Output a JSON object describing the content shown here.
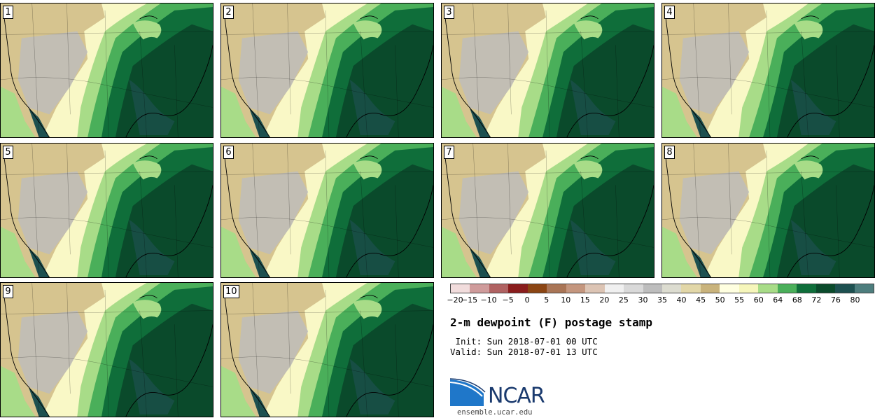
{
  "figure": {
    "title": "2-m dewpoint (F) postage stamp",
    "init_line": " Init: Sun 2018-07-01 00 UTC",
    "valid_line": "Valid: Sun 2018-07-01 13 UTC",
    "site_url": "ensemble.ucar.edu",
    "logo_text": "NCAR"
  },
  "members": [
    "1",
    "2",
    "3",
    "4",
    "5",
    "6",
    "7",
    "8",
    "9",
    "10"
  ],
  "colorbar": {
    "ticks": [
      "−20",
      "−15",
      "−10",
      "−5",
      "0",
      "5",
      "10",
      "15",
      "20",
      "25",
      "30",
      "35",
      "40",
      "45",
      "50",
      "55",
      "60",
      "64",
      "68",
      "72",
      "76",
      "80"
    ],
    "colors": [
      "#f1dcdc",
      "#cf9b9b",
      "#b06262",
      "#8a1d1d",
      "#8b4513",
      "#a97556",
      "#c4967e",
      "#dcc4b4",
      "#f0f0f0",
      "#d9d9d9",
      "#bdbdbd",
      "#dcdcd0",
      "#e2d7a8",
      "#c9b37c",
      "#ffffe0",
      "#f6f6bb",
      "#a8dc88",
      "#4aaf5a",
      "#0f6e3a",
      "#0a4a2b",
      "#1d5050",
      "#4d7d7d"
    ]
  },
  "colors": {
    "humid_dark": "#0a4a2b",
    "humid_mid": "#0f6e3a",
    "humid_light": "#4aaf5a",
    "moist": "#a8dc88",
    "dry_light": "#f9f8c6",
    "dry_tan": "#c9b37c",
    "very_dry": "#bdbdbd",
    "coast_teal": "#1d5050"
  }
}
